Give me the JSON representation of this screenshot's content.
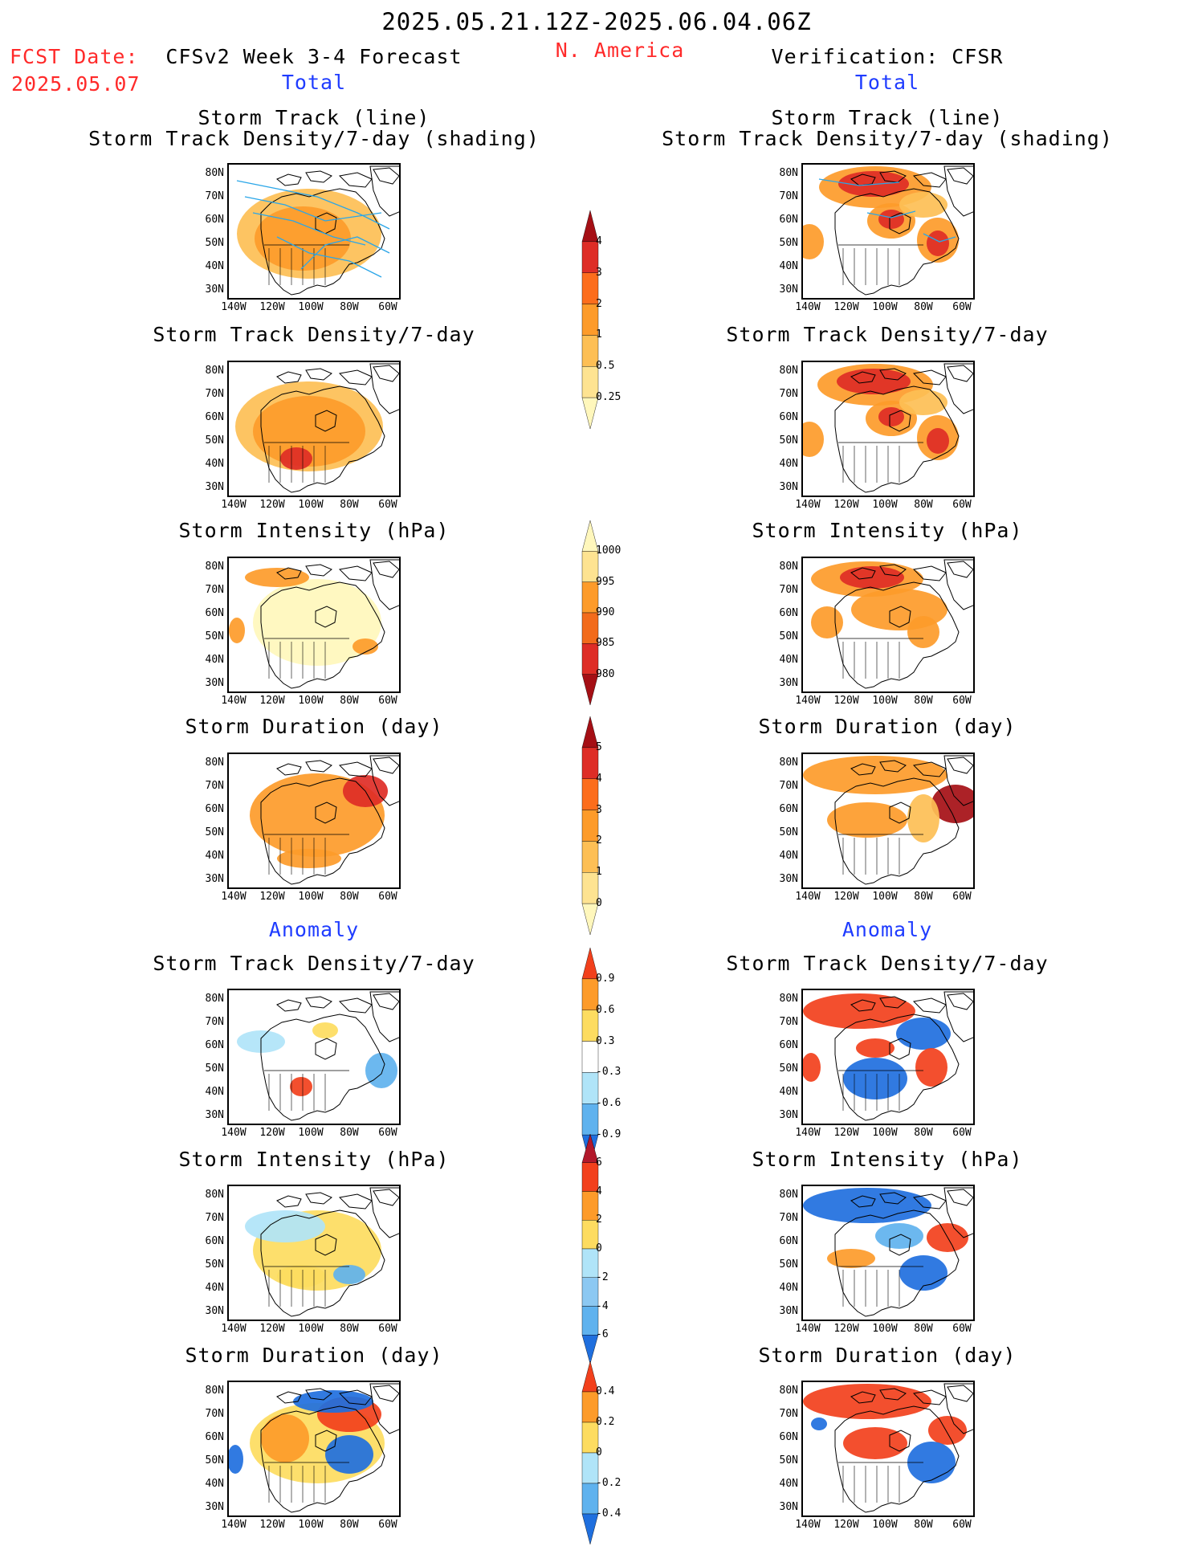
{
  "header": {
    "date_range": "2025.05.21.12Z-2025.06.04.06Z",
    "fcst_label": "FCST Date:",
    "fcst_date": "2025.05.07",
    "left_title": "CFSv2 Week 3-4 Forecast",
    "region": "N. America",
    "right_title": "Verification: CFSR",
    "total_left": "Total",
    "total_right": "Total",
    "anomaly_left": "Anomaly",
    "anomaly_right": "Anomaly"
  },
  "panel_titles": {
    "track_line": "Storm Track (line)",
    "track_shading": "Storm Track Density/7-day (shading)",
    "density": "Storm Track Density/7-day",
    "intensity": "Storm Intensity (hPa)",
    "duration": "Storm Duration (day)"
  },
  "lat_labels": [
    "80N",
    "70N",
    "60N",
    "50N",
    "40N",
    "30N"
  ],
  "lon_labels": [
    "140W",
    "120W",
    "100W",
    "80W",
    "60W"
  ],
  "colorbars": [
    {
      "name": "density-total",
      "labels": [
        "4",
        "3",
        "2",
        "1",
        "0.5",
        "0.25"
      ],
      "colors": [
        "#a50f15",
        "#de2d26",
        "#fc6d1c",
        "#fd9b2a",
        "#fdbf55",
        "#fee391",
        "#fff7bc"
      ]
    },
    {
      "name": "intensity-total",
      "labels": [
        "1000",
        "995",
        "990",
        "985",
        "980"
      ],
      "colors": [
        "#fff7bc",
        "#fee391",
        "#fd9b2a",
        "#f26b1b",
        "#de2d26",
        "#a50f15"
      ]
    },
    {
      "name": "duration-total",
      "labels": [
        "5",
        "4",
        "3",
        "2",
        "1",
        "0"
      ],
      "colors": [
        "#a50f15",
        "#de2d26",
        "#fc6d1c",
        "#fd9b2a",
        "#fdbf55",
        "#fee391",
        "#fff7bc"
      ]
    },
    {
      "name": "density-anom",
      "labels": [
        "0.9",
        "0.6",
        "0.3",
        "-0.3",
        "-0.6",
        "-0.9"
      ],
      "colors": [
        "#f2401c",
        "#fd9b2a",
        "#fddc60",
        "#ffffff",
        "#b0e4f8",
        "#5fb2ee",
        "#1f6fde"
      ]
    },
    {
      "name": "intensity-anom",
      "labels": [
        "6",
        "4",
        "2",
        "0",
        "-2",
        "-4",
        "-6"
      ],
      "colors": [
        "#b2182b",
        "#f2401c",
        "#fd9b2a",
        "#fddc60",
        "#b0e4f8",
        "#8cc8f2",
        "#5fb2ee",
        "#1f6fde"
      ]
    },
    {
      "name": "duration-anom",
      "labels": [
        "0.4",
        "0.2",
        "0",
        "-0.2",
        "-0.4"
      ],
      "colors": [
        "#f2401c",
        "#fd9b2a",
        "#fddc60",
        "#b0e4f8",
        "#5fb2ee",
        "#1f6fde"
      ]
    }
  ]
}
